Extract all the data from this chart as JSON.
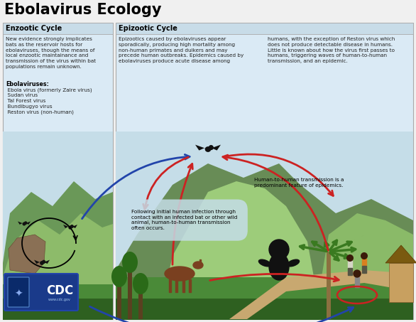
{
  "title": "Ebolavirus Ecology",
  "title_fontsize": 15,
  "title_fontweight": "bold",
  "left_box_title": "Enzootic Cycle",
  "right_box_title": "Epizootic Cycle",
  "left_box_text": "New evidence strongly implicates\nbats as the reservoir hosts for\nebolaviruses, though the means of\nlocal enzootic maintainance and\ntransmission of the virus within bat\npopulations remain unknown.",
  "ebolaviruses_label": "Ebolaviruses:",
  "ebolaviruses_list": "  Ebola virus (formerly Zaire virus)\n  Sudan virus\n  Taï Forest virus\n  Bundibugyo virus\n  Reston virus (non-human)",
  "right_box_text1": "Epizootics caused by ebolaviruses appear\nsporadically, producing high mortality among\nnon-human primates and duikers and may\nprecede human outbreaks. Epidemics caused by\nebolaviruses produce acute disease among",
  "right_box_text2": "humans, with the exception of Reston virus which\ndoes not produce detectable disease in humans.\nLittle is known about how the virus first passes to\nhumans, triggering waves of human-to-human\ntransmission, and an epidemic.",
  "annotation1": "Following initial human infection through\ncontact with an infected bat or other wild\nanimal, human-to-human transmission\noften occurs.",
  "annotation2": "Human-to-human transmission is a\npredominant feature of epidemics.",
  "sky_color": "#c5dde8",
  "ground_color_dark": "#4a8c3a",
  "ground_color_mid": "#6aaa50",
  "hill_dark": "#5a9648",
  "hill_mid": "#7ab860",
  "hill_light": "#9acc78",
  "fg_green": "#3a6e2a",
  "text_color": "#222222",
  "arrow_blue": "#2244aa",
  "arrow_red": "#cc2222",
  "panel_border": "#aaaaaa",
  "panel_bg_top": "#daeaf5",
  "panel_bg_scene": "#c5dde8",
  "white": "#ffffff",
  "cdc_blue": "#1a3d8a"
}
